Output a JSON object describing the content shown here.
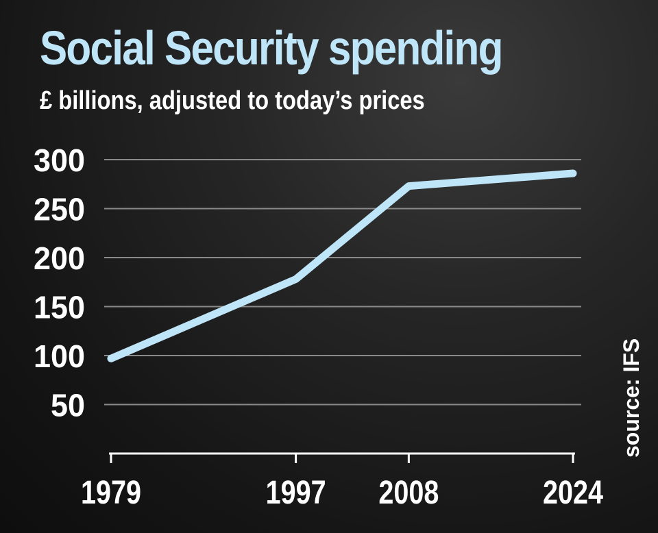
{
  "chart_data": {
    "type": "line",
    "title": "Social Security spending",
    "subtitle": "£ billions, adjusted to today’s prices",
    "xlabel": "",
    "ylabel": "",
    "x": [
      1979,
      1997,
      2008,
      2024
    ],
    "x_tick_labels": [
      "1979",
      "1997",
      "2008",
      "2024"
    ],
    "y_ticks": [
      50,
      100,
      150,
      200,
      250,
      300
    ],
    "y_tick_labels": [
      "50",
      "100",
      "150",
      "200",
      "250",
      "300"
    ],
    "ylim": [
      0,
      300
    ],
    "series": [
      {
        "values": [
          97,
          178,
          273,
          286
        ],
        "color": "#bfe5f8"
      }
    ],
    "grid": true,
    "legend": "none",
    "source": "source: IFS"
  },
  "colors": {
    "background": "#1c1c1c",
    "accent": "#bfe5f8",
    "text": "#ffffff",
    "grid": "#8a8a8a"
  }
}
